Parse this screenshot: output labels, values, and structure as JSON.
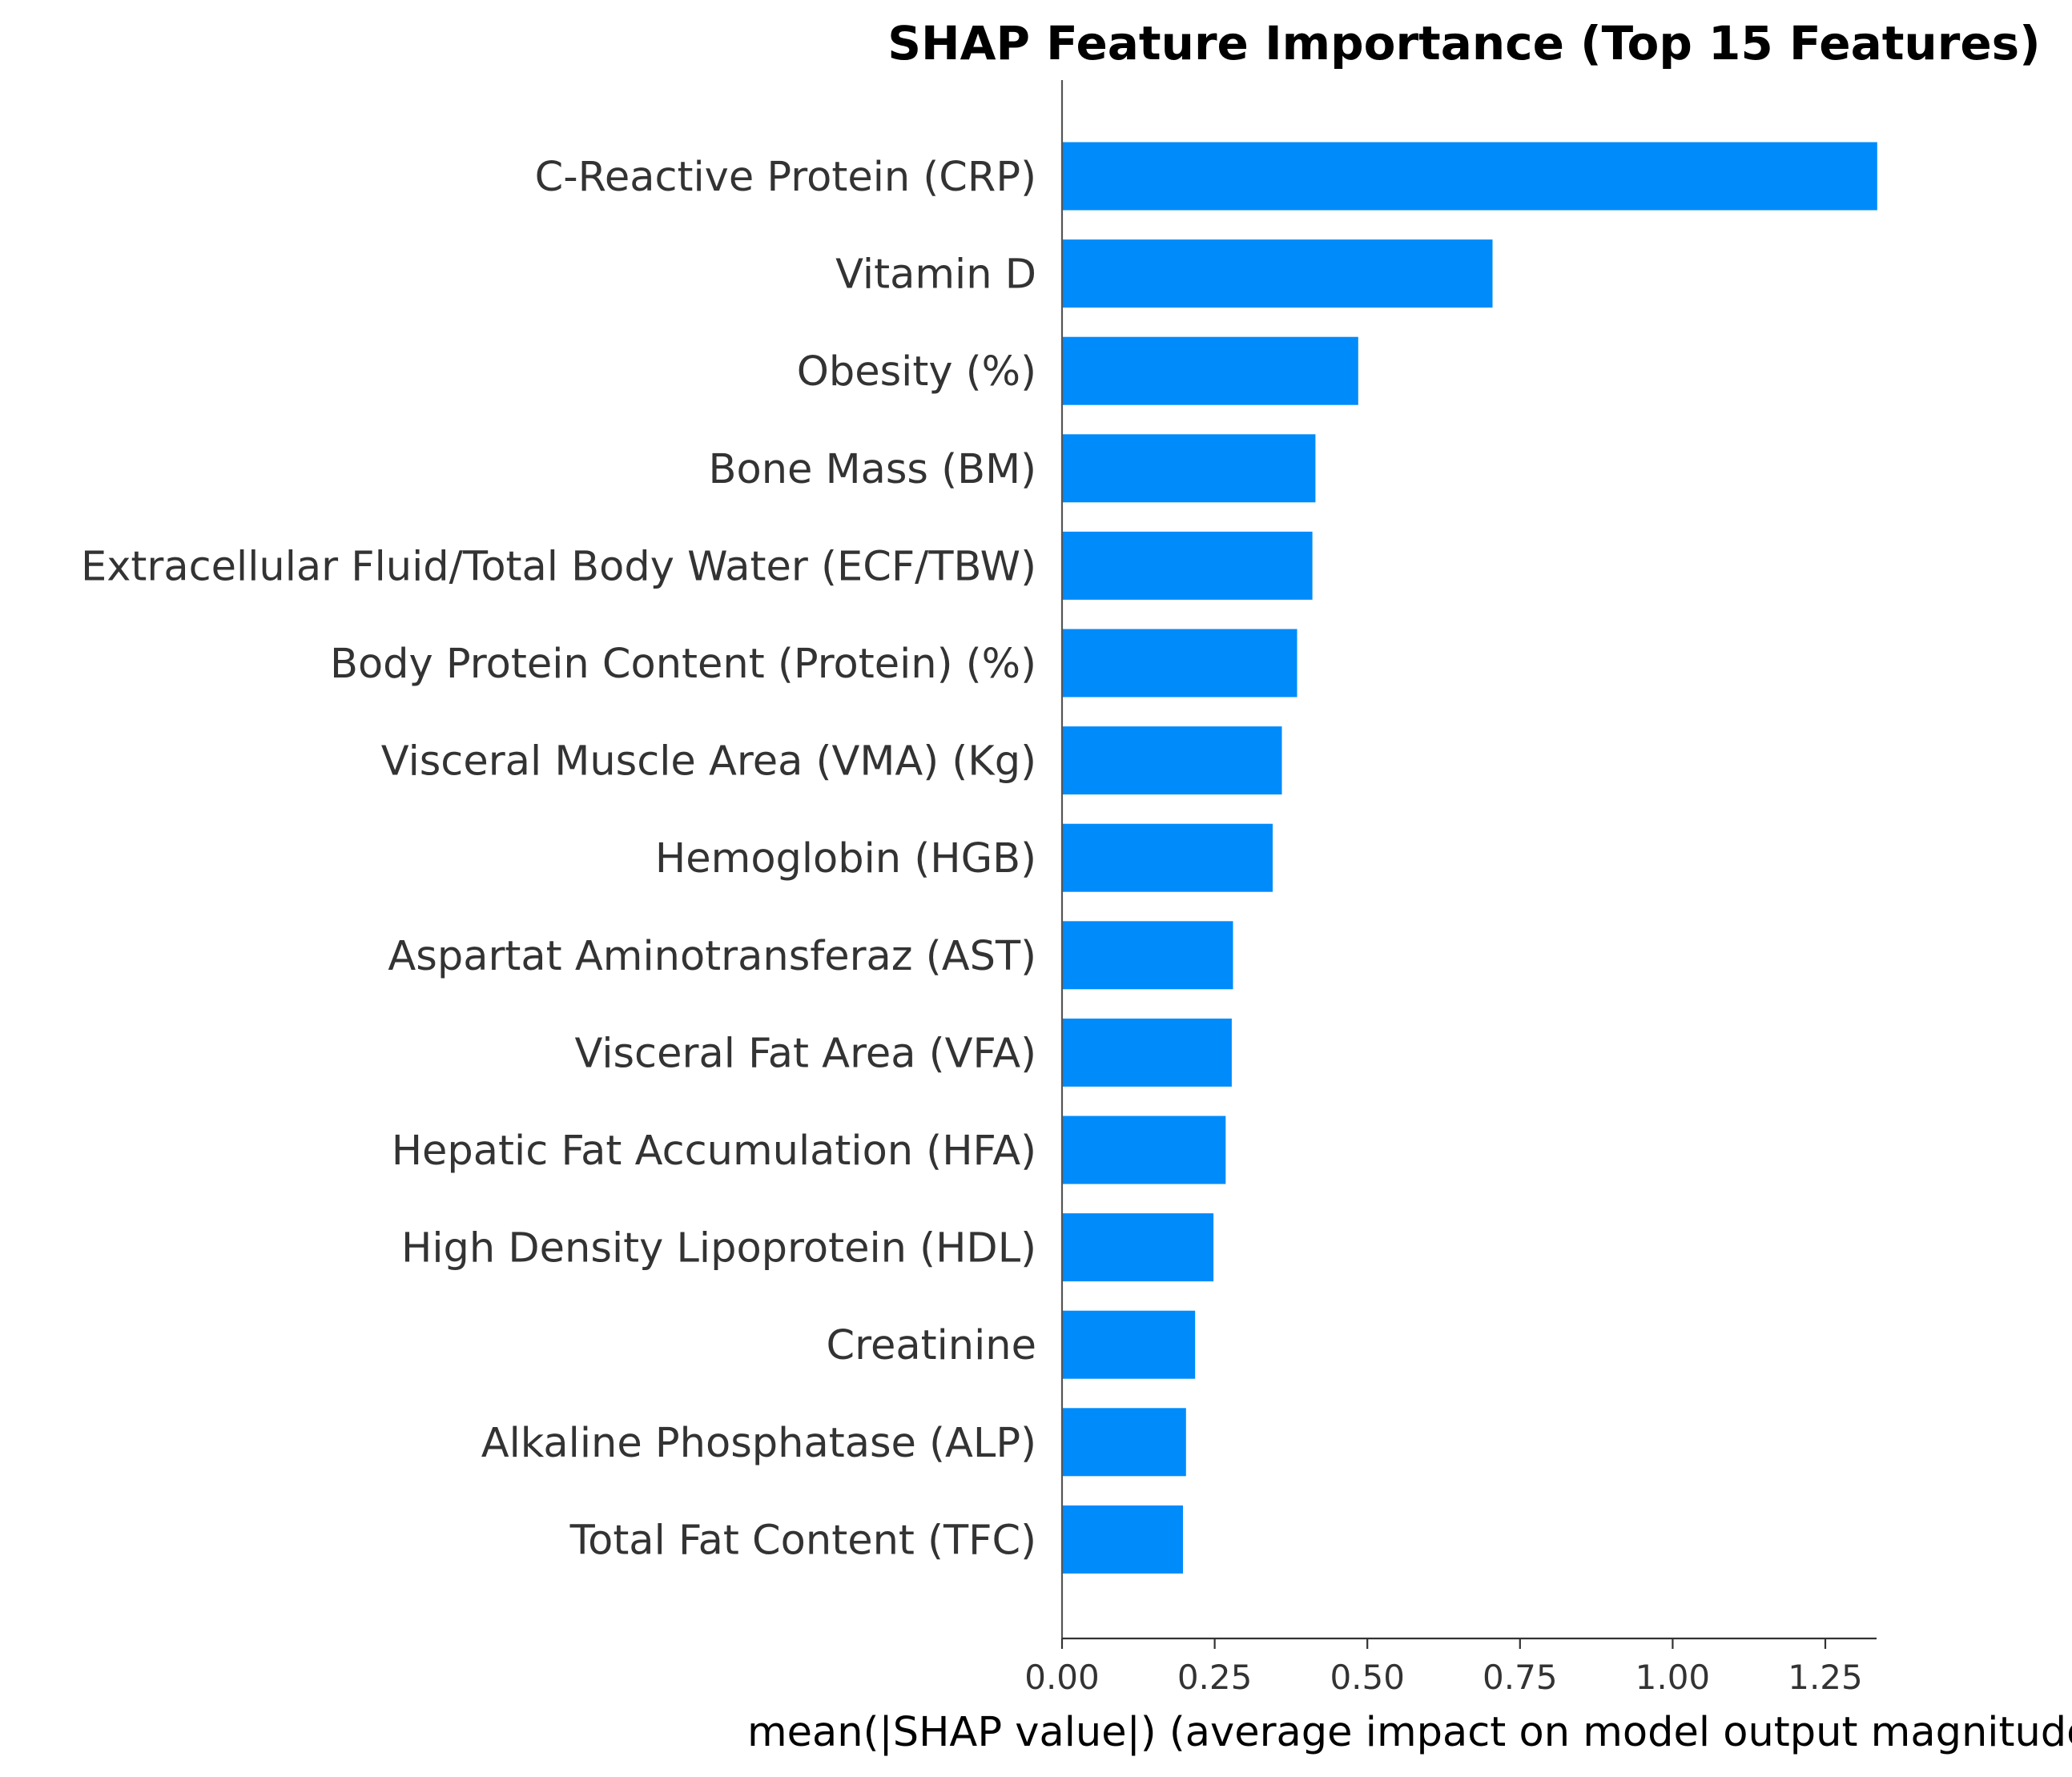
{
  "chart_data": {
    "type": "bar",
    "orientation": "horizontal",
    "title": "SHAP Feature Importance (Top 15 Features)",
    "xlabel": "mean(|SHAP value|) (average impact on model output magnitude)",
    "ylabel": "",
    "categories": [
      "C-Reactive Protein (CRP)",
      "Vitamin D",
      "Obesity (%)",
      "Bone Mass (BM)",
      "Extracellular Fluid/Total Body Water (ECF/TBW)",
      "Body Protein Content (Protein) (%)",
      "Visceral Muscle Area (VMA) (Kg)",
      "Hemoglobin (HGB)",
      "Aspartat Aminotransferaz (AST)",
      "Visceral Fat Area (VFA)",
      "Hepatic Fat Accumulation (HFA)",
      "High Density Lipoprotein (HDL)",
      "Creatinine",
      "Alkaline Phosphatase (ALP)",
      "Total Fat Content (TFC)"
    ],
    "values": [
      1.335,
      0.705,
      0.485,
      0.415,
      0.41,
      0.385,
      0.36,
      0.345,
      0.28,
      0.278,
      0.268,
      0.248,
      0.218,
      0.203,
      0.198
    ],
    "xlim": [
      0,
      1.4
    ],
    "xticks": [
      "0.00",
      "0.25",
      "0.50",
      "0.75",
      "1.00",
      "1.25"
    ],
    "xtick_values": [
      0,
      0.25,
      0.5,
      0.75,
      1.0,
      1.25
    ],
    "bar_color": "#008bfb",
    "grid": false,
    "legend": "none"
  }
}
